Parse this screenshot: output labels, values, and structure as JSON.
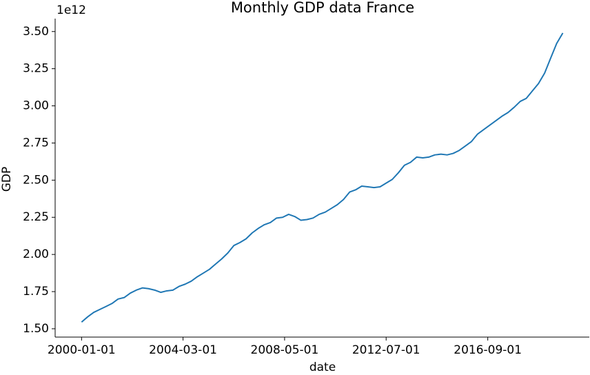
{
  "chart_data": {
    "type": "line",
    "title": "Monthly GDP data France",
    "xlabel": "date",
    "ylabel": "GDP",
    "y_offset_text": "1e12",
    "x": [
      "2000-01-01",
      "2000-04-01",
      "2000-07-01",
      "2000-10-01",
      "2001-01-01",
      "2001-04-01",
      "2001-07-01",
      "2001-10-01",
      "2002-01-01",
      "2002-04-01",
      "2002-07-01",
      "2002-10-01",
      "2003-01-01",
      "2003-04-01",
      "2003-07-01",
      "2003-10-01",
      "2004-01-01",
      "2004-04-01",
      "2004-07-01",
      "2004-10-01",
      "2005-01-01",
      "2005-04-01",
      "2005-07-01",
      "2005-10-01",
      "2006-01-01",
      "2006-04-01",
      "2006-07-01",
      "2006-10-01",
      "2007-01-01",
      "2007-04-01",
      "2007-07-01",
      "2007-10-01",
      "2008-01-01",
      "2008-04-01",
      "2008-07-01",
      "2008-10-01",
      "2009-01-01",
      "2009-04-01",
      "2009-07-01",
      "2009-10-01",
      "2010-01-01",
      "2010-04-01",
      "2010-07-01",
      "2010-10-01",
      "2011-01-01",
      "2011-04-01",
      "2011-07-01",
      "2011-10-01",
      "2012-01-01",
      "2012-04-01",
      "2012-07-01",
      "2012-10-01",
      "2013-01-01",
      "2013-04-01",
      "2013-07-01",
      "2013-10-01",
      "2014-01-01",
      "2014-04-01",
      "2014-07-01",
      "2014-10-01",
      "2015-01-01",
      "2015-04-01",
      "2015-07-01",
      "2015-10-01",
      "2016-01-01",
      "2016-04-01",
      "2016-07-01",
      "2016-10-01",
      "2017-01-01",
      "2017-04-01",
      "2017-07-01",
      "2017-10-01",
      "2018-01-01",
      "2018-04-01",
      "2018-07-01",
      "2018-10-01",
      "2019-01-01",
      "2019-04-01",
      "2019-07-01",
      "2019-10-01"
    ],
    "series": [
      {
        "color": "#1f77b4",
        "values": [
          1.545,
          1.58,
          1.61,
          1.63,
          1.65,
          1.67,
          1.7,
          1.71,
          1.74,
          1.76,
          1.775,
          1.77,
          1.76,
          1.745,
          1.755,
          1.76,
          1.785,
          1.8,
          1.82,
          1.85,
          1.875,
          1.9,
          1.935,
          1.97,
          2.01,
          2.06,
          2.08,
          2.105,
          2.145,
          2.175,
          2.2,
          2.215,
          2.245,
          2.25,
          2.27,
          2.255,
          2.23,
          2.235,
          2.245,
          2.27,
          2.285,
          2.31,
          2.335,
          2.37,
          2.42,
          2.435,
          2.46,
          2.455,
          2.45,
          2.455,
          2.48,
          2.505,
          2.55,
          2.6,
          2.62,
          2.655,
          2.65,
          2.655,
          2.67,
          2.675,
          2.67,
          2.68,
          2.7,
          2.73,
          2.76,
          2.81,
          2.84,
          2.87,
          2.9,
          2.93,
          2.955,
          2.99,
          3.03,
          3.05,
          3.1,
          3.15,
          3.22,
          3.32,
          3.42,
          3.49
        ]
      }
    ],
    "xlim": [
      "1998-12-01",
      "2020-11-01"
    ],
    "xticks": [
      "2000-01-01",
      "2004-03-01",
      "2008-05-01",
      "2012-07-01",
      "2016-09-01"
    ],
    "ylim": [
      1.444,
      3.587
    ],
    "yticks": [
      {
        "value": 1.5,
        "label": "1.50"
      },
      {
        "value": 1.75,
        "label": "1.75"
      },
      {
        "value": 2.0,
        "label": "2.00"
      },
      {
        "value": 2.25,
        "label": "2.25"
      },
      {
        "value": 2.5,
        "label": "2.50"
      },
      {
        "value": 2.75,
        "label": "2.75"
      },
      {
        "value": 3.0,
        "label": "3.00"
      },
      {
        "value": 3.25,
        "label": "3.25"
      },
      {
        "value": 3.5,
        "label": "3.50"
      }
    ]
  }
}
